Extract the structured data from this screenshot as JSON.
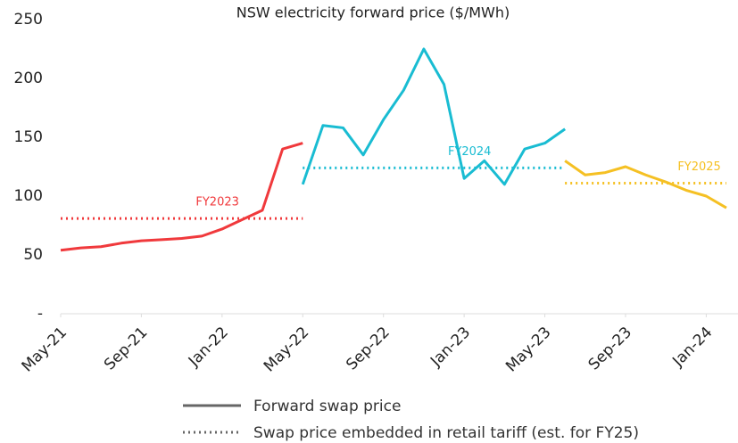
{
  "chart_data": {
    "type": "line",
    "title": "NSW electricity forward price ($/MWh)",
    "ylim": [
      0,
      250
    ],
    "yticks": [
      {
        "value": 0,
        "label": "-"
      },
      50,
      100,
      150,
      200,
      250
    ],
    "xlim": [
      "2021-05",
      "2024-02"
    ],
    "xticks": [
      {
        "value": "2021-05",
        "label": "May-21"
      },
      {
        "value": "2021-09",
        "label": "Sep-21"
      },
      {
        "value": "2022-01",
        "label": "Jan-22"
      },
      {
        "value": "2022-05",
        "label": "May-22"
      },
      {
        "value": "2022-09",
        "label": "Sep-22"
      },
      {
        "value": "2023-01",
        "label": "Jan-23"
      },
      {
        "value": "2023-05",
        "label": "May-23"
      },
      {
        "value": "2023-09",
        "label": "Sep-23"
      },
      {
        "value": "2024-01",
        "label": "Jan-24"
      }
    ],
    "legend": [
      "Forward swap price",
      "Swap price embedded in retail tariff (est. for FY25)"
    ],
    "series": [
      {
        "name": "FY2023",
        "color": "#f0393c",
        "x": [
          "2021-05",
          "2021-06",
          "2021-07",
          "2021-08",
          "2021-09",
          "2021-10",
          "2021-11",
          "2021-12",
          "2022-01",
          "2022-02",
          "2022-03",
          "2022-04",
          "2022-05"
        ],
        "values": [
          54,
          56,
          57,
          60,
          62,
          63,
          64,
          66,
          72,
          80,
          88,
          140,
          145
        ],
        "tariff": 81,
        "tariff_x": [
          "2021-05",
          "2022-05"
        ]
      },
      {
        "name": "FY2024",
        "color": "#19bcd2",
        "x": [
          "2022-05",
          "2022-06",
          "2022-07",
          "2022-08",
          "2022-09",
          "2022-10",
          "2022-11",
          "2022-12",
          "2023-01",
          "2023-02",
          "2023-03",
          "2023-04",
          "2023-05",
          "2023-06"
        ],
        "values": [
          110,
          160,
          158,
          135,
          165,
          190,
          225,
          195,
          115,
          130,
          110,
          140,
          145,
          157
        ],
        "tariff": 124,
        "tariff_x": [
          "2022-05",
          "2023-06"
        ]
      },
      {
        "name": "FY2025",
        "color": "#f5c023",
        "x": [
          "2023-06",
          "2023-07",
          "2023-08",
          "2023-09",
          "2023-10",
          "2023-11",
          "2023-12",
          "2024-01",
          "2024-02"
        ],
        "values": [
          130,
          118,
          120,
          125,
          118,
          112,
          105,
          100,
          90
        ],
        "tariff": 111,
        "tariff_x": [
          "2023-06",
          "2024-02"
        ]
      }
    ]
  }
}
